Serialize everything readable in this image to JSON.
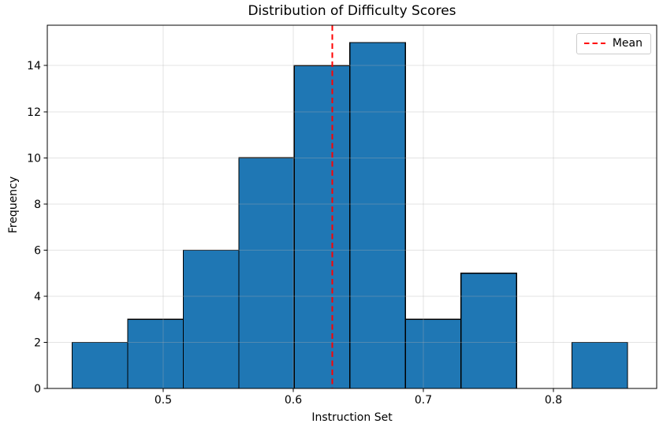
{
  "chart_data": {
    "type": "bar",
    "subtype": "histogram",
    "title": "Distribution of Difficulty Scores",
    "xlabel": "Instruction Set",
    "ylabel": "Frequency",
    "bin_edges": [
      0.43,
      0.4727,
      0.5154,
      0.5581,
      0.6008,
      0.6435,
      0.6862,
      0.7289,
      0.7716,
      0.8143,
      0.857
    ],
    "counts": [
      2,
      3,
      6,
      10,
      14,
      15,
      3,
      5,
      0,
      2
    ],
    "mean_line": {
      "x": 0.63,
      "label": "Mean",
      "color": "#ff0000",
      "style": "dashed"
    },
    "xticks": [
      0.5,
      0.6,
      0.7,
      0.8
    ],
    "xtick_labels": [
      "0.5",
      "0.6",
      "0.7",
      "0.8"
    ],
    "yticks": [
      0,
      2,
      4,
      6,
      8,
      10,
      12,
      14
    ],
    "ytick_labels": [
      "0",
      "2",
      "4",
      "6",
      "8",
      "10",
      "12",
      "14"
    ],
    "xlim": [
      0.4109,
      0.8794
    ],
    "ylim": [
      0,
      15.75
    ],
    "grid": true,
    "grid_axis": "both",
    "legend_position": "upper right",
    "colors": {
      "bar_fill": "#1f77b4",
      "bar_edge": "#000000",
      "grid": "#b0b0b0",
      "spine": "#000000",
      "text": "#000000"
    }
  }
}
